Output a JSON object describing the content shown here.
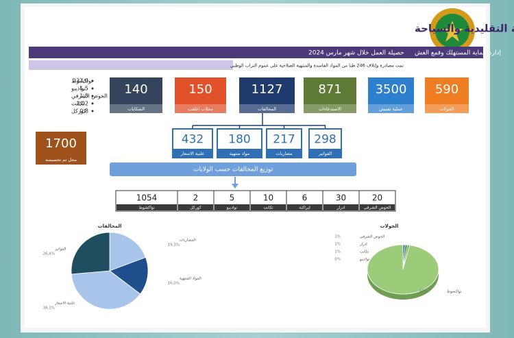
{
  "header": {
    "title": "وزارة التجارة والصناعة والصناعة التقليدية والسياحة",
    "department": "إدارة حماية المستهلك وقمع الغش",
    "period": "حصيلة العمل خلال شهر مارس 2024"
  },
  "summary": {
    "text": "تمت مصادرة وإتلاف 246 طنا من المواد الفاسدة والمنتهية الصلاحية على عموم التراب الوطني",
    "items": [
      {
        "value": "237,9",
        "place": "نواكشوط"
      },
      {
        "value": "1,5",
        "place": "نواذيبو"
      },
      {
        "value": "1,5",
        "place": "الحوض الشرقي"
      },
      {
        "value": "1,02",
        "place": "تكانت"
      },
      {
        "value": "0,8",
        "place": "كوركل"
      }
    ]
  },
  "stats": [
    {
      "value": 590,
      "label": "الجولات",
      "color": "#ef7d22"
    },
    {
      "value": 3500,
      "label": "عملية تفتيش",
      "color": "#2f7fcf"
    },
    {
      "value": 871,
      "label": "الاستدعاءات",
      "color": "#5f7a34"
    },
    {
      "value": 1127,
      "label": "المخالفات",
      "color": "#1f3b6e"
    },
    {
      "value": 150,
      "label": "محلات اغلقت",
      "color": "#e0512a"
    },
    {
      "value": 140,
      "label": "الشكايات",
      "color": "#33445c"
    }
  ],
  "awareness": {
    "value": 1700,
    "label": "محل تم تحسيسه",
    "color": "#a0521d"
  },
  "violation_types": [
    {
      "value": 298,
      "label": "الفواتير"
    },
    {
      "value": 217,
      "label": "مضاربات"
    },
    {
      "value": 180,
      "label": "مواد منتهية"
    },
    {
      "value": 432,
      "label": "علنية الاسعار"
    }
  ],
  "regions_title": "توزيع المخالفات حسب الولايات",
  "regions": [
    {
      "value": 20,
      "label": "الحوض الشرقي"
    },
    {
      "value": 30,
      "label": "ادرار"
    },
    {
      "value": 6,
      "label": "لبراكنة"
    },
    {
      "value": 10,
      "label": "تكانت"
    },
    {
      "value": 5,
      "label": "نواذيبو"
    },
    {
      "value": 2,
      "label": "كوركل"
    },
    {
      "value": 1054,
      "label": "نواكشوط"
    }
  ],
  "pies": [
    {
      "title": "المخالفات",
      "slices": [
        {
          "label": "المضاربات",
          "value": 19.3,
          "value_label": "19,3%",
          "color": "#a9c4eb"
        },
        {
          "label": "المواد المنتهية",
          "value": 16.0,
          "value_label": "16,0%",
          "color": "#1f4e8c"
        },
        {
          "label": "علنية الاسعار",
          "value": 38.3,
          "value_label": "38,3%",
          "color": "#a9c4eb"
        },
        {
          "label": "الفواتير",
          "value": 26.4,
          "value_label": "26,4%",
          "color": "#1f4e5f"
        }
      ]
    },
    {
      "title": "الجولات",
      "slices": [
        {
          "label": "الحوض الشرقي",
          "value": 1,
          "value_label": "1%",
          "color": "#2f6fb5"
        },
        {
          "label": "ادرار",
          "value": 1,
          "value_label": "1%",
          "color": "#3f8f3f"
        },
        {
          "label": "تكانت",
          "value": 1,
          "value_label": "1%",
          "color": "#6fae4f"
        },
        {
          "label": "نواذيبو",
          "value": 0,
          "value_label": "0%",
          "color": "#c8e0b0"
        },
        {
          "label": "نواكشوط",
          "value": 97,
          "value_label": "97%",
          "color": "#9ccc7a"
        }
      ]
    }
  ]
}
